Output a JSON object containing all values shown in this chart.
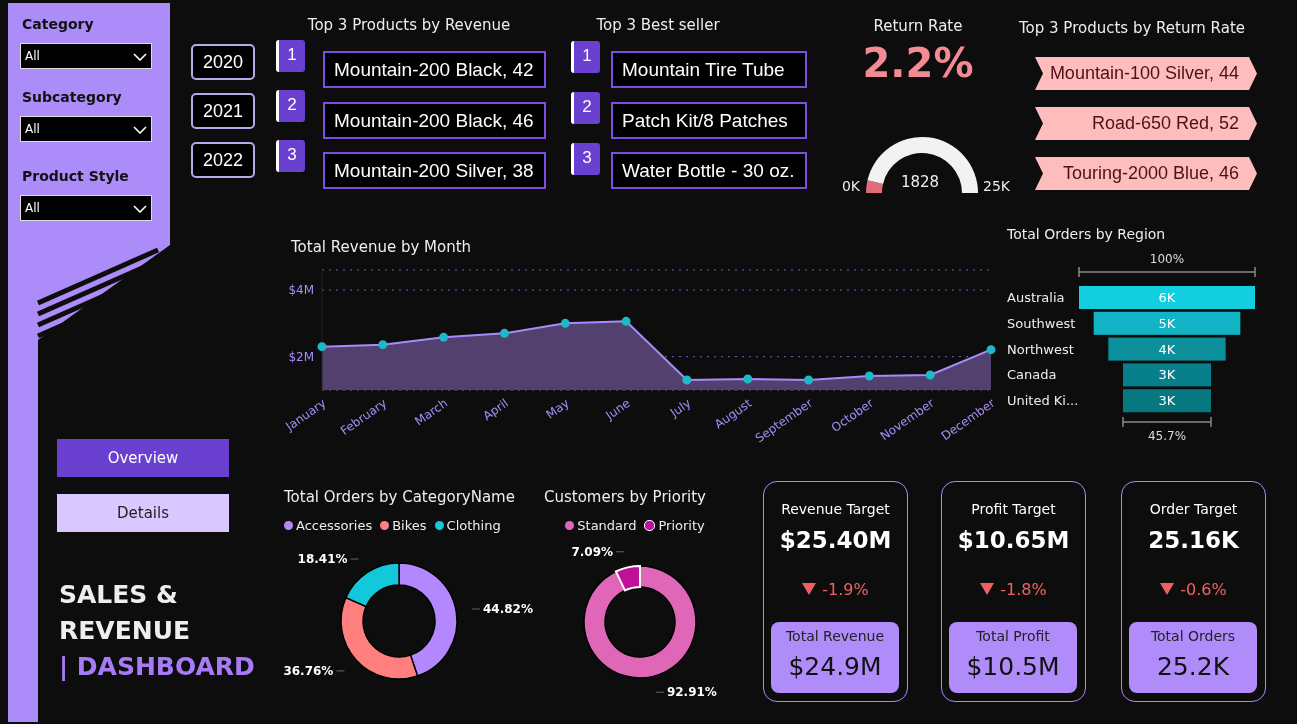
{
  "chart_data": [
    {
      "type": "other",
      "annotations": [
        "Category",
        "All",
        "Subcategory",
        "All",
        "Product Style",
        "All",
        "Overview",
        "Details",
        "SALES &",
        "REVENUE",
        "| DASHBOARD"
      ]
    },
    {
      "type": "other",
      "title": "Top 3 Products by Revenue",
      "annotations": [
        "2020",
        "2021",
        "2022",
        "1",
        "2",
        "3",
        "Mountain-200 Black, 42",
        "Mountain-200 Black, 46",
        "Mountain-200 Silver, 38"
      ]
    },
    {
      "type": "other",
      "title": "Top 3 Best seller",
      "annotations": [
        "1",
        "2",
        "3",
        "Mountain Tire Tube",
        "Patch Kit/8 Patches",
        "Water Bottle - 30 oz."
      ]
    },
    {
      "type": "other",
      "title": "Return Rate",
      "annotations": [
        "2.2%"
      ]
    },
    {
      "type": "donut",
      "categories": [
        null,
        null
      ],
      "values": [
        7.31,
        92.69
      ],
      "colors": [
        "#e06c78",
        "#f2f2f2"
      ],
      "annotations": [
        "0K",
        "1828",
        "25K"
      ]
    },
    {
      "type": "other",
      "title": "Top 3 Products by Return Rate",
      "annotations": [
        "Mountain-100 Silver, 44",
        "Road-650 Red, 52",
        "Touring-2000 Blue, 46"
      ]
    },
    {
      "type": "area",
      "title": "Total Revenue by Month",
      "categories": [
        "January",
        "February",
        "March",
        "April",
        "May",
        "June",
        "July",
        "August",
        "September",
        "October",
        "November",
        "December"
      ],
      "series": [
        {
          "color": "#a78bfa",
          "values": [
            2.3,
            2.36,
            2.58,
            2.7,
            3.0,
            3.06,
            1.3,
            1.33,
            1.3,
            1.42,
            1.45,
            2.21
          ]
        }
      ],
      "ylim": [
        1,
        4.6
      ],
      "yticks": [
        {
          "value": 2,
          "label": "$2M"
        },
        {
          "value": 4,
          "label": "$4M"
        }
      ],
      "grid": "y",
      "marker": "circle"
    },
    {
      "type": "other",
      "title": "Total Orders by Region",
      "categories": [
        "Australia",
        "Southwest",
        "Northwest",
        "Canada",
        "United Ki..."
      ],
      "values": [
        6,
        5,
        4,
        3,
        3
      ],
      "value_labels": [
        "6K",
        "5K",
        "4K",
        "3K",
        "3K"
      ],
      "colors": [
        "#12cfe0",
        "#12b3c4",
        "#0a8f9b",
        "#08808c",
        "#087880"
      ],
      "annotations": [
        "100%",
        "45.7%"
      ]
    },
    {
      "type": "donut",
      "title": "Total Orders by CategoryName",
      "categories": [
        "Accessories",
        "Bikes",
        "Clothing"
      ],
      "values": [
        44.82,
        36.76,
        18.41
      ],
      "colors": [
        "#b388ff",
        "#ff7f7f",
        "#14c8dc"
      ],
      "value_labels": [
        "44.82%",
        "36.76%",
        "18.41%"
      ],
      "legend": "top left"
    },
    {
      "type": "donut",
      "title": "Customers by Priority",
      "categories": [
        "Standard",
        "Priority"
      ],
      "values": [
        92.91,
        7.09
      ],
      "colors": [
        "#e066b8",
        "#c0109a"
      ],
      "value_labels": [
        "92.91%",
        "7.09%"
      ],
      "legend": "top"
    },
    {
      "type": "other",
      "title": "Revenue Target",
      "annotations": [
        "$25.40M",
        "-1.9%",
        "Total Revenue",
        "$24.9M"
      ]
    },
    {
      "type": "other",
      "title": "Profit Target",
      "annotations": [
        "$10.65M",
        "-1.8%",
        "Total Profit",
        "$10.5M"
      ]
    },
    {
      "type": "other",
      "title": "Order Target",
      "annotations": [
        "25.16K",
        "-0.6%",
        "Total Orders",
        "25.2K"
      ]
    }
  ]
}
